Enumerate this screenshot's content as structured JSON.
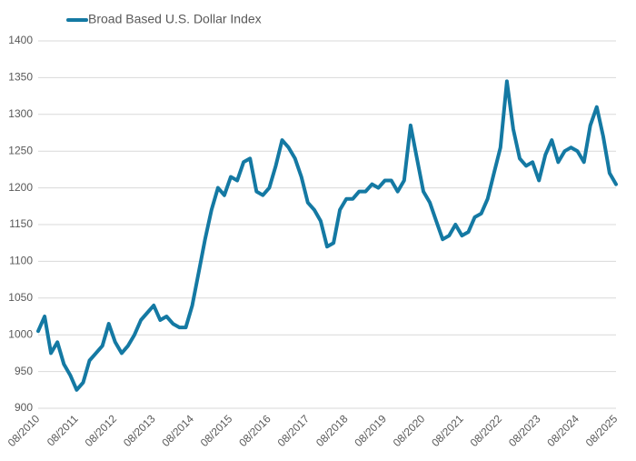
{
  "chart_data": {
    "type": "line",
    "x": [
      "08/2010",
      null,
      null,
      null,
      null,
      null,
      "08/2011",
      null,
      null,
      null,
      null,
      null,
      "08/2012",
      null,
      null,
      null,
      null,
      null,
      "08/2013",
      null,
      null,
      null,
      null,
      null,
      "08/2014",
      null,
      null,
      null,
      null,
      null,
      "08/2015",
      null,
      null,
      null,
      null,
      null,
      "08/2016",
      null,
      null,
      null,
      null,
      null,
      "08/2017",
      null,
      null,
      null,
      null,
      null,
      "08/2018",
      null,
      null,
      null,
      null,
      null,
      "08/2019",
      null,
      null,
      null,
      null,
      null,
      "08/2020",
      null,
      null,
      null,
      null,
      null,
      "08/2021",
      null,
      null,
      null,
      null,
      null,
      "08/2022",
      null,
      null,
      null,
      null,
      null,
      "08/2023",
      null,
      null,
      null,
      null,
      null,
      "08/2024",
      null,
      null,
      null,
      null,
      null,
      "08/2025"
    ],
    "series": [
      {
        "name": "Broad Based U.S. Dollar Index",
        "color": "#1479a3",
        "values": [
          1005,
          1025,
          975,
          990,
          960,
          945,
          925,
          935,
          965,
          975,
          985,
          1015,
          990,
          975,
          985,
          1000,
          1020,
          1030,
          1040,
          1020,
          1025,
          1015,
          1010,
          1010,
          1040,
          1085,
          1130,
          1170,
          1200,
          1190,
          1215,
          1210,
          1235,
          1240,
          1195,
          1190,
          1200,
          1230,
          1265,
          1255,
          1240,
          1215,
          1180,
          1170,
          1155,
          1120,
          1125,
          1170,
          1185,
          1185,
          1195,
          1195,
          1205,
          1200,
          1210,
          1210,
          1195,
          1210,
          1285,
          1240,
          1195,
          1180,
          1155,
          1130,
          1135,
          1150,
          1135,
          1140,
          1160,
          1165,
          1185,
          1220,
          1255,
          1345,
          1280,
          1240,
          1230,
          1235,
          1210,
          1245,
          1265,
          1235,
          1250,
          1255,
          1250,
          1235,
          1285,
          1310,
          1270,
          1220,
          1205
        ]
      }
    ],
    "ylim": [
      900,
      1400
    ],
    "yticks": [
      900,
      950,
      1000,
      1050,
      1100,
      1150,
      1200,
      1250,
      1300,
      1350,
      1400
    ],
    "grid": true,
    "legend": "top-left"
  }
}
